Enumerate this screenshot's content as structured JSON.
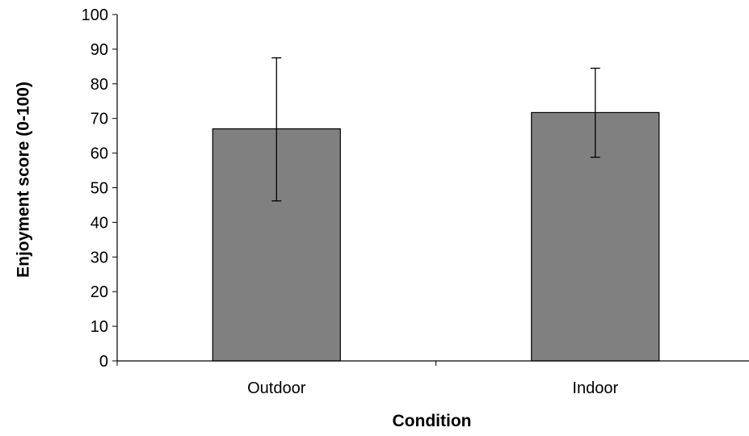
{
  "chart_data": {
    "type": "bar",
    "title": "",
    "xlabel": "Condition",
    "ylabel": "Enjoyment score (0-100)",
    "categories": [
      "Outdoor",
      "Indoor"
    ],
    "values": [
      67,
      71.7
    ],
    "error_bars": {
      "upper": [
        87.5,
        84.5
      ],
      "lower": [
        46.2,
        58.8
      ]
    },
    "ylim": [
      0,
      100
    ],
    "yticks": [
      0,
      10,
      20,
      30,
      40,
      50,
      60,
      70,
      80,
      90,
      100
    ],
    "ytick_labels": [
      "0",
      "10",
      "20",
      "30",
      "40",
      "50",
      "60",
      "70",
      "80",
      "90",
      "100"
    ],
    "grid": false,
    "legend": "none",
    "colors": {
      "bar_fill": "#808080",
      "bar_stroke": "#000000",
      "axis": "#000000",
      "error_bar": "#000000"
    }
  }
}
